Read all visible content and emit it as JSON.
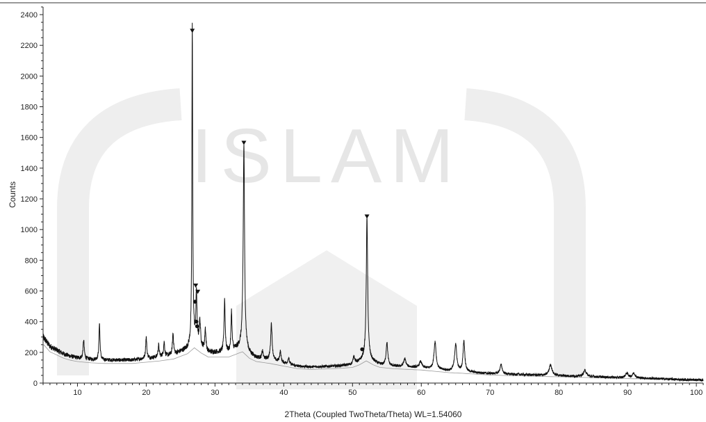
{
  "chart_data": {
    "type": "line",
    "title": "",
    "xlabel": "2Theta (Coupled TwoTheta/Theta) WL=1.54060",
    "ylabel": "Counts",
    "xlim": [
      5,
      101
    ],
    "ylim": [
      0,
      2450
    ],
    "xticks": [
      10,
      20,
      30,
      40,
      50,
      60,
      70,
      80,
      90,
      100
    ],
    "yticks": [
      0,
      200,
      400,
      600,
      800,
      1000,
      1200,
      1400,
      1600,
      1800,
      2000,
      2200,
      2400
    ],
    "grid": false,
    "legend": "none",
    "colors": {
      "line": "#111111",
      "background_curve": "#888888",
      "watermark": "#e6e6e6"
    },
    "baseline": [
      [
        5,
        300
      ],
      [
        6,
        240
      ],
      [
        7,
        215
      ],
      [
        8,
        190
      ],
      [
        9,
        175
      ],
      [
        10,
        165
      ],
      [
        12,
        155
      ],
      [
        14,
        150
      ],
      [
        16,
        150
      ],
      [
        18,
        150
      ],
      [
        20,
        160
      ],
      [
        22,
        170
      ],
      [
        24,
        185
      ],
      [
        26,
        225
      ],
      [
        27,
        270
      ],
      [
        28,
        230
      ],
      [
        29,
        200
      ],
      [
        30,
        200
      ],
      [
        32,
        200
      ],
      [
        34,
        240
      ],
      [
        35,
        190
      ],
      [
        36,
        165
      ],
      [
        38,
        150
      ],
      [
        40,
        130
      ],
      [
        42,
        110
      ],
      [
        44,
        105
      ],
      [
        46,
        108
      ],
      [
        48,
        112
      ],
      [
        50,
        120
      ],
      [
        51,
        140
      ],
      [
        52,
        170
      ],
      [
        53,
        140
      ],
      [
        54,
        120
      ],
      [
        56,
        110
      ],
      [
        58,
        105
      ],
      [
        60,
        100
      ],
      [
        62,
        90
      ],
      [
        64,
        80
      ],
      [
        66,
        75
      ],
      [
        68,
        68
      ],
      [
        70,
        62
      ],
      [
        72,
        58
      ],
      [
        75,
        55
      ],
      [
        78,
        50
      ],
      [
        80,
        48
      ],
      [
        83,
        44
      ],
      [
        86,
        40
      ],
      [
        89,
        35
      ],
      [
        92,
        32
      ],
      [
        95,
        28
      ],
      [
        98,
        22
      ],
      [
        101,
        20
      ]
    ],
    "peaks": [
      {
        "x": 10.9,
        "y": 120,
        "w": 0.1
      },
      {
        "x": 13.2,
        "y": 240,
        "w": 0.09
      },
      {
        "x": 20.0,
        "y": 140,
        "w": 0.1
      },
      {
        "x": 21.8,
        "y": 80,
        "w": 0.1
      },
      {
        "x": 22.6,
        "y": 90,
        "w": 0.1
      },
      {
        "x": 23.9,
        "y": 140,
        "w": 0.1
      },
      {
        "x": 26.7,
        "y": 2080,
        "w": 0.07
      },
      {
        "x": 27.3,
        "y": 330,
        "w": 0.09
      },
      {
        "x": 27.8,
        "y": 160,
        "w": 0.12
      },
      {
        "x": 28.6,
        "y": 140,
        "w": 0.1
      },
      {
        "x": 31.4,
        "y": 350,
        "w": 0.1
      },
      {
        "x": 32.4,
        "y": 260,
        "w": 0.09
      },
      {
        "x": 34.2,
        "y": 1320,
        "w": 0.12
      },
      {
        "x": 36.9,
        "y": 50,
        "w": 0.1
      },
      {
        "x": 38.2,
        "y": 240,
        "w": 0.13
      },
      {
        "x": 39.5,
        "y": 70,
        "w": 0.12
      },
      {
        "x": 40.7,
        "y": 40,
        "w": 0.12
      },
      {
        "x": 50.2,
        "y": 50,
        "w": 0.15
      },
      {
        "x": 52.1,
        "y": 910,
        "w": 0.12
      },
      {
        "x": 55.0,
        "y": 150,
        "w": 0.14
      },
      {
        "x": 57.6,
        "y": 50,
        "w": 0.2
      },
      {
        "x": 59.9,
        "y": 40,
        "w": 0.2
      },
      {
        "x": 62.0,
        "y": 180,
        "w": 0.18
      },
      {
        "x": 65.0,
        "y": 180,
        "w": 0.18
      },
      {
        "x": 66.2,
        "y": 200,
        "w": 0.15
      },
      {
        "x": 71.6,
        "y": 60,
        "w": 0.2
      },
      {
        "x": 78.8,
        "y": 70,
        "w": 0.25
      },
      {
        "x": 83.8,
        "y": 40,
        "w": 0.25
      },
      {
        "x": 89.9,
        "y": 30,
        "w": 0.25
      },
      {
        "x": 90.9,
        "y": 30,
        "w": 0.25
      }
    ],
    "peak_markers": [
      {
        "x": 26.7,
        "y": 2290
      },
      {
        "x": 27.2,
        "y": 630
      },
      {
        "x": 27.5,
        "y": 590
      },
      {
        "x": 34.2,
        "y": 1560
      },
      {
        "x": 52.1,
        "y": 1080
      }
    ],
    "annotation_points": [
      {
        "x": 27.1,
        "y": 530
      },
      {
        "x": 27.3,
        "y": 400
      },
      {
        "x": 27.4,
        "y": 370
      },
      {
        "x": 51.4,
        "y": 220
      }
    ]
  },
  "watermark": {
    "text": "ISLAM"
  }
}
